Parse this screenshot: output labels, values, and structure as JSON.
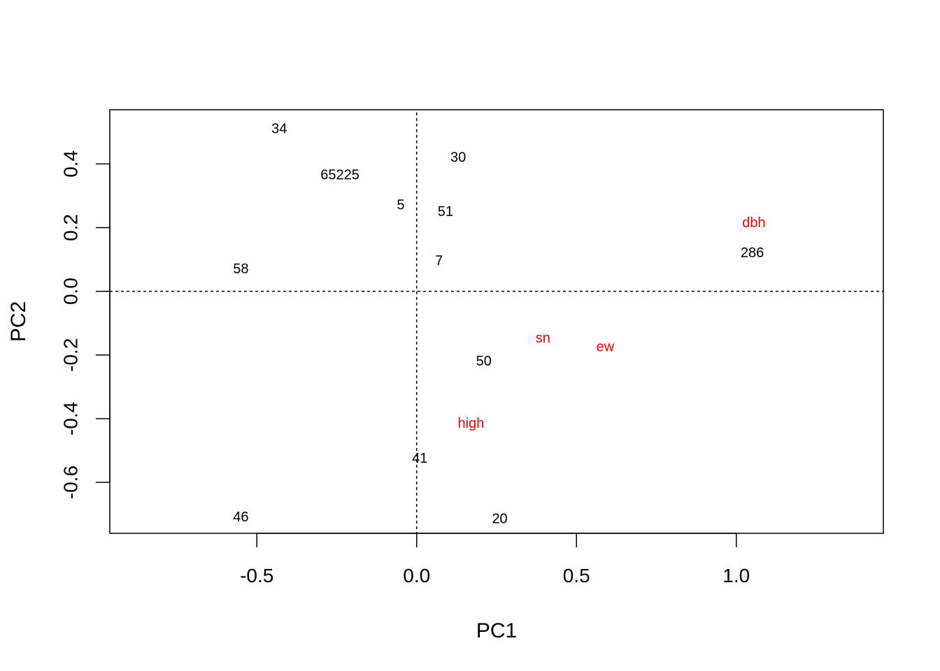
{
  "chart_data": {
    "type": "scatter",
    "title": "",
    "xlabel": "PC1",
    "ylabel": "PC2",
    "xlim": [
      -0.96,
      1.46
    ],
    "ylim": [
      -0.76,
      0.57
    ],
    "x_ticks": [
      {
        "value": -0.5,
        "label": "-0.5"
      },
      {
        "value": 0.0,
        "label": "0.0"
      },
      {
        "value": 0.5,
        "label": "0.5"
      },
      {
        "value": 1.0,
        "label": "1.0"
      }
    ],
    "y_ticks": [
      {
        "value": -0.6,
        "label": "-0.6"
      },
      {
        "value": -0.4,
        "label": "-0.4"
      },
      {
        "value": -0.2,
        "label": "-0.2"
      },
      {
        "value": 0.0,
        "label": "0.0"
      },
      {
        "value": 0.2,
        "label": "0.2"
      },
      {
        "value": 0.4,
        "label": "0.4"
      }
    ],
    "reference_lines": {
      "x": 0,
      "y": 0,
      "style": "dotted"
    },
    "grid": false,
    "series": [
      {
        "color": "#000000",
        "points": [
          {
            "label": "34",
            "x": -0.43,
            "y": 0.51
          },
          {
            "label": "65225",
            "x": -0.24,
            "y": 0.365
          },
          {
            "label": "30",
            "x": 0.13,
            "y": 0.42
          },
          {
            "label": "5",
            "x": -0.05,
            "y": 0.27
          },
          {
            "label": "51",
            "x": 0.09,
            "y": 0.25
          },
          {
            "label": "58",
            "x": -0.55,
            "y": 0.07
          },
          {
            "label": "7",
            "x": 0.07,
            "y": 0.095
          },
          {
            "label": "286",
            "x": 1.05,
            "y": 0.12
          },
          {
            "label": "50",
            "x": 0.21,
            "y": -0.22
          },
          {
            "label": "41",
            "x": 0.01,
            "y": -0.525
          },
          {
            "label": "46",
            "x": -0.55,
            "y": -0.71
          },
          {
            "label": "20",
            "x": 0.26,
            "y": -0.715
          }
        ]
      },
      {
        "color": "#ff0000",
        "points": [
          {
            "label": "dbh",
            "x": 1.055,
            "y": 0.215
          },
          {
            "label": "sn",
            "x": 0.395,
            "y": -0.148
          },
          {
            "label": "ew",
            "x": 0.59,
            "y": -0.175
          },
          {
            "label": "high",
            "x": 0.17,
            "y": -0.415
          }
        ]
      }
    ]
  }
}
